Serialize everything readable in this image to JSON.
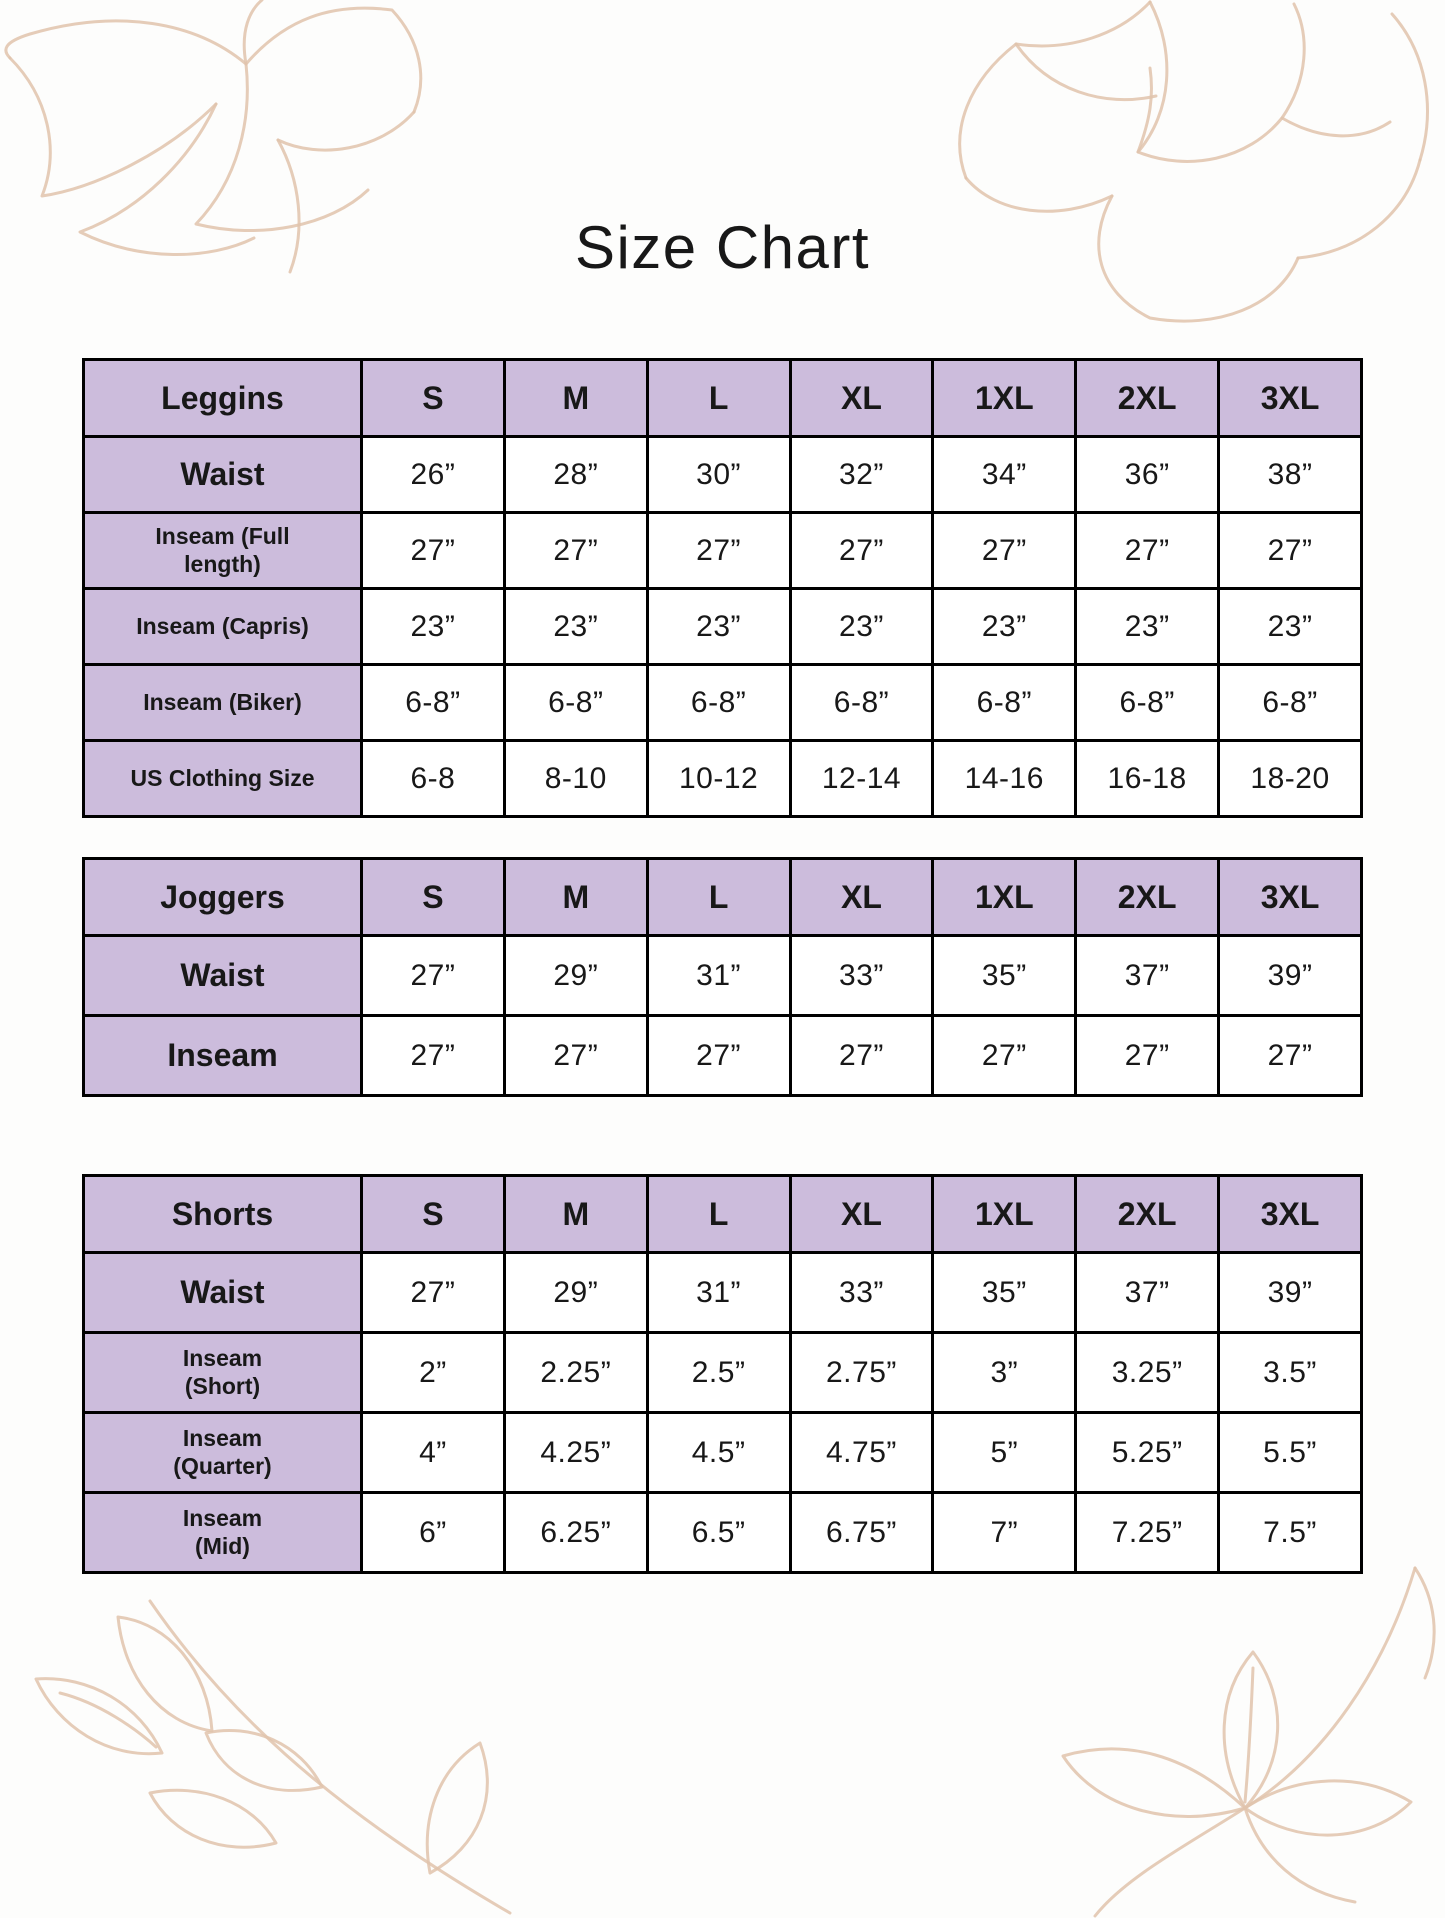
{
  "title": "Size Chart",
  "colors": {
    "cell_purple": "#ccbcdc",
    "table_border": "#000000",
    "sketch_line": "#e0c3ab",
    "text": "#181818",
    "background": "#fdfdfc"
  },
  "decorations": {
    "top_left": "flower-line-sketch",
    "top_right": "peony-line-sketch",
    "bottom_left": "leaf-branch-line-sketch",
    "bottom_right": "leaf-branch-line-sketch"
  },
  "tables": [
    {
      "name": "Leggins",
      "sizes": [
        "S",
        "M",
        "L",
        "XL",
        "1XL",
        "2XL",
        "3XL"
      ],
      "rows": [
        {
          "label": "Waist",
          "values": [
            "26”",
            "28”",
            "30”",
            "32”",
            "34”",
            "36”",
            "38”"
          ]
        },
        {
          "label": "Inseam (Full\nlength)",
          "values": [
            "27”",
            "27”",
            "27”",
            "27”",
            "27”",
            "27”",
            "27”"
          ]
        },
        {
          "label": "Inseam (Capris)",
          "values": [
            "23”",
            "23”",
            "23”",
            "23”",
            "23”",
            "23”",
            "23”"
          ]
        },
        {
          "label": "Inseam (Biker)",
          "values": [
            "6-8”",
            "6-8”",
            "6-8”",
            "6-8”",
            "6-8”",
            "6-8”",
            "6-8”"
          ]
        },
        {
          "label": "US Clothing Size",
          "values": [
            "6-8",
            "8-10",
            "10-12",
            "12-14",
            "14-16",
            "16-18",
            "18-20"
          ]
        }
      ]
    },
    {
      "name": "Joggers",
      "sizes": [
        "S",
        "M",
        "L",
        "XL",
        "1XL",
        "2XL",
        "3XL"
      ],
      "rows": [
        {
          "label": "Waist",
          "values": [
            "27”",
            "29”",
            "31”",
            "33”",
            "35”",
            "37”",
            "39”"
          ]
        },
        {
          "label": "Inseam",
          "values": [
            "27”",
            "27”",
            "27”",
            "27”",
            "27”",
            "27”",
            "27”"
          ]
        }
      ]
    },
    {
      "name": "Shorts",
      "sizes": [
        "S",
        "M",
        "L",
        "XL",
        "1XL",
        "2XL",
        "3XL"
      ],
      "rows": [
        {
          "label": "Waist",
          "values": [
            "27”",
            "29”",
            "31”",
            "33”",
            "35”",
            "37”",
            "39”"
          ]
        },
        {
          "label": "Inseam\n(Short)",
          "values": [
            "2”",
            "2.25”",
            "2.5”",
            "2.75”",
            "3”",
            "3.25”",
            "3.5”"
          ]
        },
        {
          "label": "Inseam\n(Quarter)",
          "values": [
            "4”",
            "4.25”",
            "4.5”",
            "4.75”",
            "5”",
            "5.25”",
            "5.5”"
          ]
        },
        {
          "label": "Inseam\n(Mid)",
          "values": [
            "6”",
            "6.25”",
            "6.5”",
            "6.75”",
            "7”",
            "7.25”",
            "7.5”"
          ]
        }
      ]
    }
  ]
}
